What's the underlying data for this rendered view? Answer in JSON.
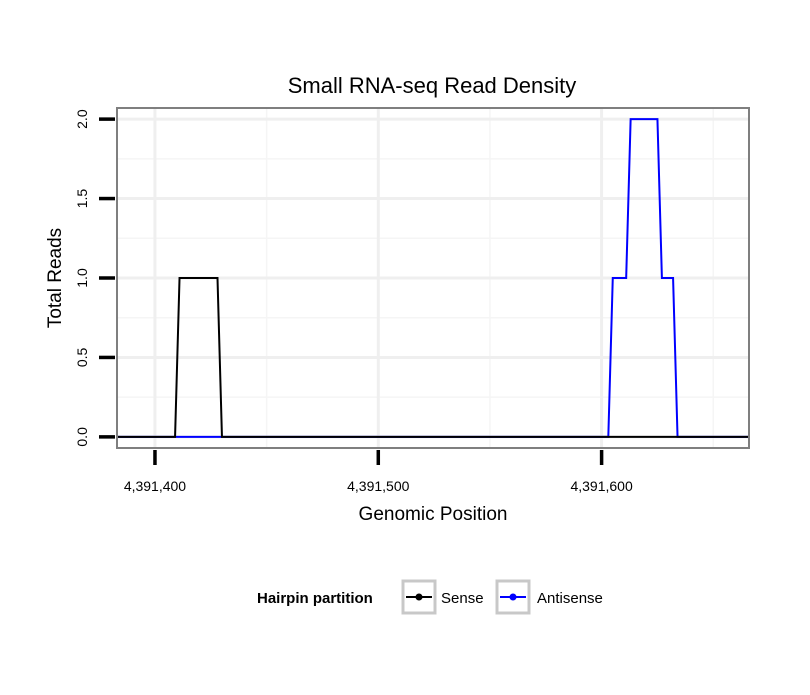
{
  "chart_data": {
    "type": "line",
    "step": true,
    "title": "Small RNA-seq Read Density",
    "xlabel": "Genomic Position",
    "ylabel": "Total Reads",
    "xlim": [
      4391383,
      4391666
    ],
    "ylim": [
      -0.07,
      2.07
    ],
    "x_ticks": [
      4391400,
      4391500,
      4391600
    ],
    "x_tick_labels": [
      "4,391,400",
      "4,391,500",
      "4,391,600"
    ],
    "y_ticks": [
      0,
      0.5,
      1,
      1.5,
      2
    ],
    "y_tick_labels": [
      "0.0",
      "0.5",
      "1.0",
      "1.5",
      "2.0"
    ],
    "grid": true,
    "legend": {
      "title": "Hairpin partition",
      "position": "bottom",
      "entries": [
        "Sense",
        "Antisense"
      ]
    },
    "series": [
      {
        "name": "Sense",
        "color": "#000000",
        "x": [
          4391383,
          4391409,
          4391411,
          4391428,
          4391430,
          4391666
        ],
        "y": [
          0,
          0,
          1,
          1,
          0,
          0
        ]
      },
      {
        "name": "Antisense",
        "color": "#0000ff",
        "x": [
          4391383,
          4391603,
          4391605,
          4391611,
          4391613,
          4391625,
          4391627,
          4391632,
          4391634,
          4391666
        ],
        "y": [
          0,
          0,
          1,
          1,
          2,
          2,
          1,
          1,
          0,
          0
        ]
      }
    ]
  }
}
